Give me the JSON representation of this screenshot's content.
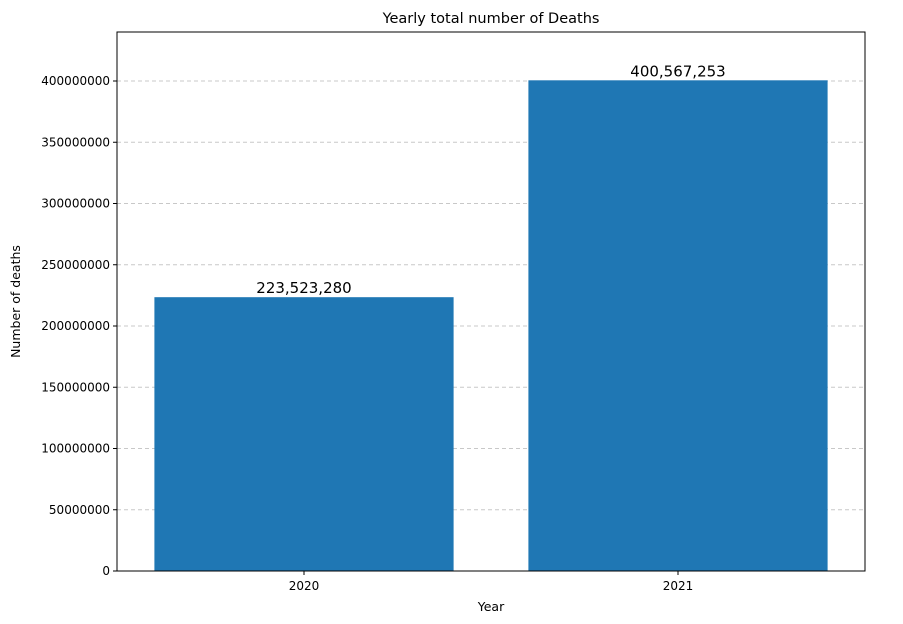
{
  "chart_data": {
    "type": "bar",
    "title": "Yearly total number of Deaths",
    "xlabel": "Year",
    "ylabel": "Number of deaths",
    "categories": [
      "2020",
      "2021"
    ],
    "values": [
      223523280,
      400567253
    ],
    "data_labels": [
      "223,523,280",
      "400,567,253"
    ],
    "ylim": [
      0,
      440000000
    ],
    "yticks": [
      0,
      50000000,
      100000000,
      150000000,
      200000000,
      250000000,
      300000000,
      350000000,
      400000000
    ],
    "ytick_labels": [
      "0",
      "50000000",
      "100000000",
      "150000000",
      "200000000",
      "250000000",
      "300000000",
      "350000000",
      "400000000"
    ],
    "grid": "y, dashed",
    "bar_color": "#1f77b4",
    "grid_color": "#c8c8c8"
  }
}
